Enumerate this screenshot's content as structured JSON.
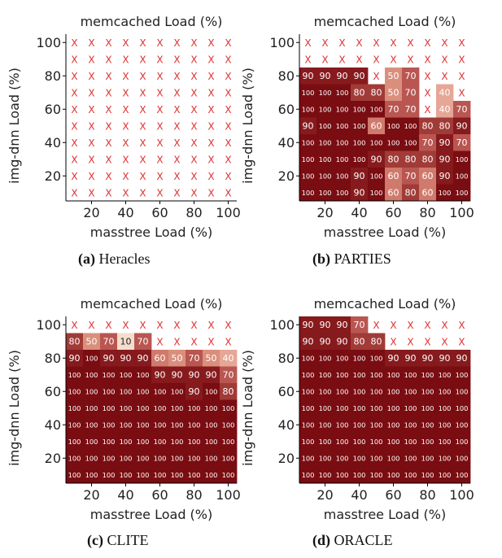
{
  "colors": {
    "x_mark": "#e03030",
    "cell_text_dark": "#ffffff",
    "cell_text_light": "#222222",
    "palette": {
      "100": "#7a0d12",
      "90": "#861a1d",
      "80": "#a13b37",
      "70": "#b95651",
      "60": "#cf7a6c",
      "50": "#da8f7d",
      "40": "#e6a796",
      "10": "#f4ddcc"
    }
  },
  "chart_data": [
    {
      "type": "heatmap",
      "title": "memcached Load (%)",
      "xlabel": "masstree Load (%)",
      "ylabel": "img-dnn Load (%)",
      "x_ticks": [
        20,
        40,
        60,
        80,
        100
      ],
      "y_ticks": [
        20,
        40,
        60,
        80,
        100
      ],
      "x": [
        10,
        20,
        30,
        40,
        50,
        60,
        70,
        80,
        90,
        100
      ],
      "y": [
        100,
        90,
        80,
        70,
        60,
        50,
        40,
        30,
        20,
        10
      ],
      "caption_label": "(a)",
      "caption_name": "Heracles",
      "values": [
        [
          "X",
          "X",
          "X",
          "X",
          "X",
          "X",
          "X",
          "X",
          "X",
          "X"
        ],
        [
          "X",
          "X",
          "X",
          "X",
          "X",
          "X",
          "X",
          "X",
          "X",
          "X"
        ],
        [
          "X",
          "X",
          "X",
          "X",
          "X",
          "X",
          "X",
          "X",
          "X",
          "X"
        ],
        [
          "X",
          "X",
          "X",
          "X",
          "X",
          "X",
          "X",
          "X",
          "X",
          "X"
        ],
        [
          "X",
          "X",
          "X",
          "X",
          "X",
          "X",
          "X",
          "X",
          "X",
          "X"
        ],
        [
          "X",
          "X",
          "X",
          "X",
          "X",
          "X",
          "X",
          "X",
          "X",
          "X"
        ],
        [
          "X",
          "X",
          "X",
          "X",
          "X",
          "X",
          "X",
          "X",
          "X",
          "X"
        ],
        [
          "X",
          "X",
          "X",
          "X",
          "X",
          "X",
          "X",
          "X",
          "X",
          "X"
        ],
        [
          "X",
          "X",
          "X",
          "X",
          "X",
          "X",
          "X",
          "X",
          "X",
          "X"
        ],
        [
          "X",
          "X",
          "X",
          "X",
          "X",
          "X",
          "X",
          "X",
          "X",
          "X"
        ]
      ]
    },
    {
      "type": "heatmap",
      "title": "memcached Load (%)",
      "xlabel": "masstree Load (%)",
      "ylabel": "img-dnn Load (%)",
      "x_ticks": [
        20,
        40,
        60,
        80,
        100
      ],
      "y_ticks": [
        20,
        40,
        60,
        80,
        100
      ],
      "x": [
        10,
        20,
        30,
        40,
        50,
        60,
        70,
        80,
        90,
        100
      ],
      "y": [
        100,
        90,
        80,
        70,
        60,
        50,
        40,
        30,
        20,
        10
      ],
      "caption_label": "(b)",
      "caption_name": "PARTIES",
      "values": [
        [
          "X",
          "X",
          "X",
          "X",
          "X",
          "X",
          "X",
          "X",
          "X",
          "X"
        ],
        [
          "X",
          "X",
          "X",
          "X",
          "X",
          "X",
          "X",
          "X",
          "X",
          "X"
        ],
        [
          "90",
          "90",
          "90",
          "90",
          "X",
          "50",
          "70",
          "X",
          "X",
          "X"
        ],
        [
          "100",
          "100",
          "100",
          "80",
          "80",
          "50",
          "70",
          "X",
          "40",
          "X"
        ],
        [
          "100",
          "100",
          "100",
          "100",
          "100",
          "70",
          "70",
          "X",
          "40",
          "70"
        ],
        [
          "90",
          "100",
          "100",
          "100",
          "60",
          "100",
          "100",
          "80",
          "80",
          "90"
        ],
        [
          "100",
          "100",
          "100",
          "100",
          "100",
          "100",
          "100",
          "70",
          "90",
          "70"
        ],
        [
          "100",
          "100",
          "100",
          "100",
          "90",
          "80",
          "80",
          "80",
          "90",
          "100"
        ],
        [
          "100",
          "100",
          "100",
          "90",
          "100",
          "60",
          "70",
          "60",
          "90",
          "100"
        ],
        [
          "100",
          "100",
          "100",
          "90",
          "100",
          "60",
          "80",
          "60",
          "100",
          "100"
        ]
      ]
    },
    {
      "type": "heatmap",
      "title": "memcached Load (%)",
      "xlabel": "masstree Load (%)",
      "ylabel": "img-dnn Load (%)",
      "x_ticks": [
        20,
        40,
        60,
        80,
        100
      ],
      "y_ticks": [
        20,
        40,
        60,
        80,
        100
      ],
      "x": [
        10,
        20,
        30,
        40,
        50,
        60,
        70,
        80,
        90,
        100
      ],
      "y": [
        100,
        90,
        80,
        70,
        60,
        50,
        40,
        30,
        20,
        10
      ],
      "caption_label": "(c)",
      "caption_name": "CLITE",
      "values": [
        [
          "X",
          "X",
          "X",
          "X",
          "X",
          "X",
          "X",
          "X",
          "X",
          "X"
        ],
        [
          "80",
          "50",
          "70",
          "10",
          "70",
          "X",
          "X",
          "X",
          "X",
          "X"
        ],
        [
          "90",
          "100",
          "90",
          "90",
          "90",
          "60",
          "50",
          "70",
          "50",
          "40"
        ],
        [
          "100",
          "100",
          "100",
          "100",
          "100",
          "90",
          "90",
          "90",
          "90",
          "70"
        ],
        [
          "100",
          "100",
          "100",
          "100",
          "100",
          "100",
          "100",
          "90",
          "100",
          "80"
        ],
        [
          "100",
          "100",
          "100",
          "100",
          "100",
          "100",
          "100",
          "100",
          "100",
          "100"
        ],
        [
          "100",
          "100",
          "100",
          "100",
          "100",
          "100",
          "100",
          "100",
          "100",
          "100"
        ],
        [
          "100",
          "100",
          "100",
          "100",
          "100",
          "100",
          "100",
          "100",
          "100",
          "100"
        ],
        [
          "100",
          "100",
          "100",
          "100",
          "100",
          "100",
          "100",
          "100",
          "100",
          "100"
        ],
        [
          "100",
          "100",
          "100",
          "100",
          "100",
          "100",
          "100",
          "100",
          "100",
          "100"
        ]
      ]
    },
    {
      "type": "heatmap",
      "title": "memcached Load (%)",
      "xlabel": "masstree Load (%)",
      "ylabel": "img-dnn Load (%)",
      "x_ticks": [
        20,
        40,
        60,
        80,
        100
      ],
      "y_ticks": [
        20,
        40,
        60,
        80,
        100
      ],
      "x": [
        10,
        20,
        30,
        40,
        50,
        60,
        70,
        80,
        90,
        100
      ],
      "y": [
        100,
        90,
        80,
        70,
        60,
        50,
        40,
        30,
        20,
        10
      ],
      "caption_label": "(d)",
      "caption_name": "ORACLE",
      "values": [
        [
          "90",
          "90",
          "90",
          "70",
          "X",
          "X",
          "X",
          "X",
          "X",
          "X"
        ],
        [
          "90",
          "90",
          "90",
          "80",
          "80",
          "X",
          "X",
          "X",
          "X",
          "X"
        ],
        [
          "100",
          "100",
          "100",
          "100",
          "100",
          "90",
          "90",
          "90",
          "90",
          "90"
        ],
        [
          "100",
          "100",
          "100",
          "100",
          "100",
          "100",
          "100",
          "100",
          "100",
          "100"
        ],
        [
          "100",
          "100",
          "100",
          "100",
          "100",
          "100",
          "100",
          "100",
          "100",
          "100"
        ],
        [
          "100",
          "100",
          "100",
          "100",
          "100",
          "100",
          "100",
          "100",
          "100",
          "100"
        ],
        [
          "100",
          "100",
          "100",
          "100",
          "100",
          "100",
          "100",
          "100",
          "100",
          "100"
        ],
        [
          "100",
          "100",
          "100",
          "100",
          "100",
          "100",
          "100",
          "100",
          "100",
          "100"
        ],
        [
          "100",
          "100",
          "100",
          "100",
          "100",
          "100",
          "100",
          "100",
          "100",
          "100"
        ],
        [
          "100",
          "100",
          "100",
          "100",
          "100",
          "100",
          "100",
          "100",
          "100",
          "100"
        ]
      ]
    }
  ]
}
